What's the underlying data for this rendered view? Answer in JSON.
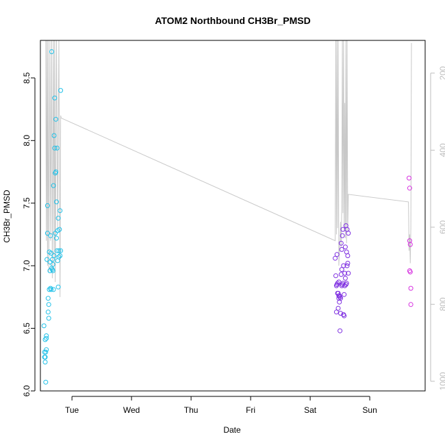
{
  "chart_data": {
    "type": "scatter",
    "title": "ATOM2 Northbound CH3Br_PMSD",
    "xlabel": "Date",
    "ylabel": "CH3Br_PMSD",
    "x_tick_labels": [
      "Tue",
      "Wed",
      "Thu",
      "Fri",
      "Sat",
      "Sun"
    ],
    "x_tick_days": [
      1,
      2,
      3,
      4,
      5,
      6
    ],
    "xlim_days": [
      0.47,
      6.93
    ],
    "ylim": [
      6.0,
      8.8
    ],
    "y_ticks": [
      6.0,
      6.5,
      7.0,
      7.5,
      8.0,
      8.5
    ],
    "y_tick_labels": [
      "6.0",
      "6.5",
      "7.0",
      "7.5",
      "8.0",
      "8.5"
    ],
    "right_axis": {
      "ticks": [
        200,
        400,
        600,
        800,
        1000
      ],
      "tick_labels": [
        "200",
        "400",
        "600",
        "800",
        "1000"
      ],
      "range_top_to_bottom": [
        115,
        1025
      ],
      "color": "#bdbdbd"
    },
    "colors": {
      "cyan": "#1ec0e8",
      "purple": "#7d2de0",
      "magenta": "#d630e0",
      "line": "#c8c8c8"
    },
    "series": [
      {
        "color": "cyan",
        "points": [
          [
            0.53,
            6.52
          ],
          [
            0.54,
            6.31
          ],
          [
            0.54,
            6.27
          ],
          [
            0.55,
            6.41
          ],
          [
            0.55,
            6.23
          ],
          [
            0.55,
            6.27
          ],
          [
            0.56,
            6.31
          ],
          [
            0.56,
            6.07
          ],
          [
            0.57,
            6.44
          ],
          [
            0.57,
            6.33
          ],
          [
            0.57,
            6.42
          ],
          [
            0.58,
            7.05
          ],
          [
            0.59,
            7.48
          ],
          [
            0.59,
            7.26
          ],
          [
            0.6,
            6.74
          ],
          [
            0.6,
            6.63
          ],
          [
            0.61,
            6.69
          ],
          [
            0.61,
            6.58
          ],
          [
            0.62,
            7.11
          ],
          [
            0.62,
            6.81
          ],
          [
            0.63,
            6.96
          ],
          [
            0.63,
            7.03
          ],
          [
            0.64,
            6.82
          ],
          [
            0.64,
            7.24
          ],
          [
            0.65,
            6.81
          ],
          [
            0.65,
            7.1
          ],
          [
            0.66,
            8.71
          ],
          [
            0.66,
            6.98
          ],
          [
            0.67,
            7.05
          ],
          [
            0.67,
            6.97
          ],
          [
            0.68,
            7.01
          ],
          [
            0.68,
            6.96
          ],
          [
            0.69,
            6.81
          ],
          [
            0.69,
            7.64
          ],
          [
            0.7,
            8.04
          ],
          [
            0.7,
            7.08
          ],
          [
            0.71,
            8.34
          ],
          [
            0.71,
            7.94
          ],
          [
            0.72,
            7.74
          ],
          [
            0.72,
            7.26
          ],
          [
            0.73,
            8.17
          ],
          [
            0.73,
            7.75
          ],
          [
            0.74,
            7.51
          ],
          [
            0.74,
            7.22
          ],
          [
            0.75,
            7.94
          ],
          [
            0.75,
            7.12
          ],
          [
            0.76,
            7.04
          ],
          [
            0.76,
            7.28
          ],
          [
            0.77,
            6.83
          ],
          [
            0.77,
            7.38
          ],
          [
            0.78,
            7.12
          ],
          [
            0.78,
            7.07
          ],
          [
            0.79,
            7.29
          ],
          [
            0.8,
            7.44
          ],
          [
            0.81,
            8.4
          ],
          [
            0.81,
            7.12
          ],
          [
            0.8,
            7.08
          ]
        ]
      },
      {
        "color": "purple",
        "points": [
          [
            5.42,
            7.06
          ],
          [
            5.43,
            6.92
          ],
          [
            5.44,
            6.84
          ],
          [
            5.44,
            6.63
          ],
          [
            5.45,
            7.09
          ],
          [
            5.45,
            6.85
          ],
          [
            5.46,
            6.78
          ],
          [
            5.46,
            6.86
          ],
          [
            5.47,
            6.78
          ],
          [
            5.47,
            6.66
          ],
          [
            5.48,
            6.87
          ],
          [
            5.48,
            6.74
          ],
          [
            5.49,
            6.76
          ],
          [
            5.49,
            6.71
          ],
          [
            5.5,
            6.48
          ],
          [
            5.5,
            6.75
          ],
          [
            5.51,
            6.74
          ],
          [
            5.51,
            6.62
          ],
          [
            5.52,
            7.18
          ],
          [
            5.52,
            6.93
          ],
          [
            5.53,
            7.13
          ],
          [
            5.53,
            6.97
          ],
          [
            5.54,
            7.24
          ],
          [
            5.54,
            6.85
          ],
          [
            5.55,
            7.29
          ],
          [
            5.55,
            6.86
          ],
          [
            5.56,
            7.0
          ],
          [
            5.56,
            6.61
          ],
          [
            5.57,
            6.6
          ],
          [
            5.57,
            6.77
          ],
          [
            5.58,
            6.94
          ],
          [
            5.58,
            6.84
          ],
          [
            5.59,
            7.15
          ],
          [
            5.59,
            6.9
          ],
          [
            5.6,
            7.32
          ],
          [
            5.6,
            6.85
          ],
          [
            5.61,
            7.11
          ],
          [
            5.61,
            6.86
          ],
          [
            5.62,
            7.29
          ],
          [
            5.62,
            7.0
          ],
          [
            5.63,
            7.08
          ],
          [
            5.63,
            7.02
          ],
          [
            5.64,
            6.94
          ],
          [
            5.64,
            7.26
          ],
          [
            5.48,
            6.76
          ],
          [
            5.53,
            6.84
          ]
        ]
      },
      {
        "color": "magenta",
        "points": [
          [
            6.66,
            7.7
          ],
          [
            6.67,
            7.62
          ],
          [
            6.67,
            7.2
          ],
          [
            6.68,
            7.17
          ],
          [
            6.67,
            6.96
          ],
          [
            6.68,
            6.95
          ],
          [
            6.69,
            6.82
          ],
          [
            6.69,
            6.69
          ]
        ]
      }
    ],
    "line_series": {
      "name": "",
      "color": "line",
      "points": [
        [
          0.56,
          8.8
        ],
        [
          0.57,
          7.2
        ],
        [
          0.58,
          8.8
        ],
        [
          0.59,
          7.0
        ],
        [
          0.6,
          8.8
        ],
        [
          0.61,
          6.95
        ],
        [
          0.63,
          8.8
        ],
        [
          0.64,
          7.2
        ],
        [
          0.66,
          8.8
        ],
        [
          0.67,
          6.9
        ],
        [
          0.69,
          8.8
        ],
        [
          0.7,
          7.0
        ],
        [
          0.71,
          8.8
        ],
        [
          0.72,
          6.87
        ],
        [
          0.74,
          8.8
        ],
        [
          0.76,
          7.3
        ],
        [
          0.78,
          8.8
        ],
        [
          0.8,
          6.75
        ],
        [
          0.81,
          8.2
        ],
        [
          0.82,
          8.18
        ],
        [
          5.42,
          7.2
        ],
        [
          5.43,
          8.8
        ],
        [
          5.44,
          7.25
        ],
        [
          5.45,
          8.8
        ],
        [
          5.46,
          7.3
        ],
        [
          5.47,
          8.8
        ],
        [
          5.48,
          7.0
        ],
        [
          5.49,
          7.1
        ],
        [
          5.5,
          7.2
        ],
        [
          5.51,
          7.35
        ],
        [
          5.52,
          7.15
        ],
        [
          5.53,
          7.45
        ],
        [
          5.54,
          8.8
        ],
        [
          5.55,
          7.42
        ],
        [
          5.56,
          8.8
        ],
        [
          5.57,
          7.28
        ],
        [
          5.58,
          8.3
        ],
        [
          5.59,
          7.22
        ],
        [
          5.6,
          8.8
        ],
        [
          5.61,
          7.18
        ],
        [
          5.62,
          8.8
        ],
        [
          5.63,
          7.28
        ],
        [
          5.64,
          7.57
        ],
        [
          6.65,
          7.51
        ],
        [
          6.66,
          7.12
        ],
        [
          6.67,
          7.25
        ],
        [
          6.68,
          7.02
        ],
        [
          6.69,
          7.3
        ],
        [
          6.7,
          8.78
        ]
      ]
    }
  }
}
